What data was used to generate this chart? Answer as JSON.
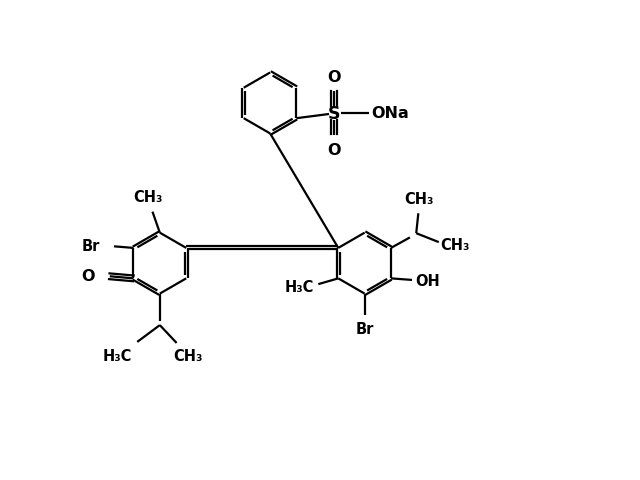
{
  "background_color": "#ffffff",
  "line_color": "#000000",
  "line_width": 1.6,
  "font_size": 10.5,
  "figsize": [
    6.4,
    4.81
  ],
  "dpi": 100,
  "xlim": [
    0,
    12
  ],
  "ylim": [
    0,
    9
  ]
}
